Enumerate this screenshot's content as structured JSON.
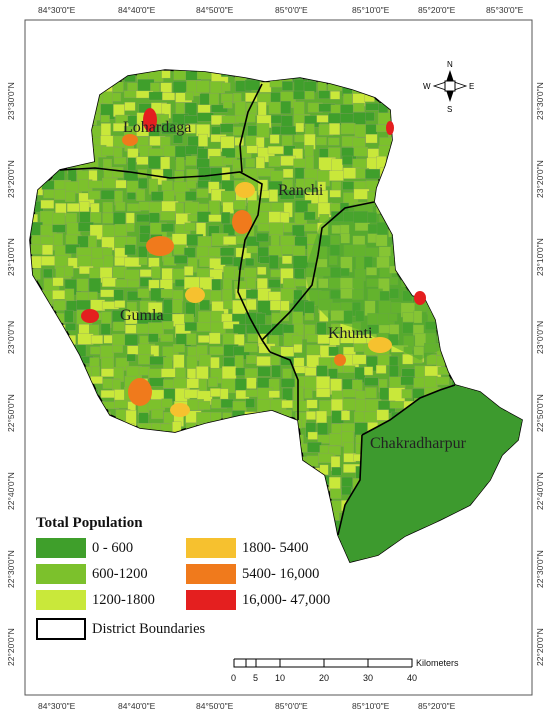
{
  "axes": {
    "top_ticks": [
      "84°30'0\"E",
      "84°40'0\"E",
      "84°50'0\"E",
      "85°0'0\"E",
      "85°10'0\"E",
      "85°20'0\"E",
      "85°30'0\"E"
    ],
    "bottom_ticks": [
      "84°30'0\"E",
      "84°40'0\"E",
      "84°50'0\"E",
      "85°0'0\"E",
      "85°10'0\"E",
      "85°20'0\"E"
    ],
    "left_ticks": [
      "23°30'0\"N",
      "23°20'0\"N",
      "23°10'0\"N",
      "23°0'0\"N",
      "22°50'0\"N",
      "22°40'0\"N",
      "22°30'0\"N",
      "22°20'0\"N"
    ],
    "right_ticks": [
      "23°30'0\"N",
      "23°20'0\"N",
      "23°10'0\"N",
      "23°0'0\"N",
      "22°50'0\"N",
      "22°40'0\"N",
      "22°30'0\"N",
      "22°20'0\"N"
    ]
  },
  "districts": {
    "lohardaga": "Lohardaga",
    "ranchi": "Ranchi",
    "gumla": "Gumla",
    "khunti": "Khunti",
    "chakradharpur": "Chakradharpur"
  },
  "legend": {
    "title": "Total Population",
    "classes": [
      {
        "label": "0 - 600",
        "color": "#3f9f2b"
      },
      {
        "label": "600-1200",
        "color": "#7cc12c"
      },
      {
        "label": "1200-1800",
        "color": "#c9e83a"
      },
      {
        "label": "1800- 5400",
        "color": "#f6c12f"
      },
      {
        "label": "5400- 16,000",
        "color": "#f07a1c"
      },
      {
        "label": "16,000- 47,000",
        "color": "#e41f1f"
      }
    ],
    "boundary_label": "District Boundaries"
  },
  "scalebar": {
    "unit": "Kilometers",
    "ticks": [
      "0",
      "5",
      "10",
      "20",
      "30",
      "40"
    ]
  },
  "north_arrow": {
    "n": "N",
    "s": "S",
    "e": "E",
    "w": "W"
  }
}
